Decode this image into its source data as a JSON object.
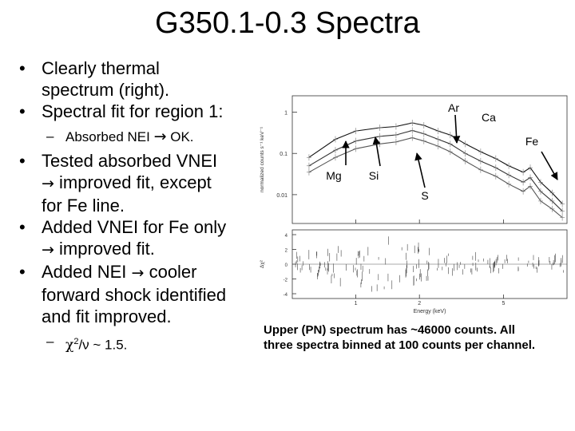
{
  "slide": {
    "title": "G350.1-0.3 Spectra",
    "bullet1_line1": "Clearly thermal",
    "bullet1_line2": "spectrum (right).",
    "bullet2": "Spectral fit for region 1:",
    "sub1_text": "Absorbed NEI",
    "sub1_result": "OK.",
    "bullet3_line1": "Tested absorbed VNEI",
    "bullet3_line2": "improved fit, except",
    "bullet3_line3": "for Fe line.",
    "bullet4_line1": "Added VNEI for Fe only",
    "bullet4_line2": "improved fit.",
    "bullet5_line1": "Added NEI",
    "bullet5_line1b": "cooler",
    "bullet5_line2": "forward shock identified",
    "bullet5_line3": "and fit improved.",
    "sub2_chi": "χ",
    "sub2_sup": "2",
    "sub2_rest": "/ν ~ 1.5.",
    "bullet_symbol": "•",
    "dash_symbol": "–",
    "arrow_symbol": "→",
    "caption_line1": "Upper (PN) spectrum has ~46000 counts. All",
    "caption_line2": "three spectra binned at 100 counts per channel."
  },
  "chart_data": {
    "type": "line",
    "xlabel": "Energy (keV)",
    "ylabel": "normalized counts s⁻¹ keV⁻¹",
    "residual_ylabel": "Δχ²",
    "xscale": "log",
    "yscale": "log",
    "x_ticks": [
      "1",
      "2",
      "5"
    ],
    "y_ticks": [
      "1",
      "0.1",
      "0.01"
    ],
    "residual_ticks": [
      "4",
      "2",
      "0",
      "-2",
      "-4"
    ],
    "annotations": [
      "Mg",
      "Si",
      "S",
      "Ar",
      "Ca",
      "Fe"
    ],
    "series": [
      {
        "x": [
          0.6,
          0.8,
          1.0,
          1.3,
          1.55,
          1.85,
          2.1,
          2.45,
          2.8,
          3.3,
          3.9,
          4.6,
          5.3,
          6.2,
          6.7,
          7.5,
          8.5,
          9.5
        ],
        "y": [
          0.08,
          0.22,
          0.35,
          0.42,
          0.45,
          0.55,
          0.48,
          0.35,
          0.28,
          0.17,
          0.11,
          0.075,
          0.05,
          0.035,
          0.045,
          0.02,
          0.011,
          0.006
        ]
      },
      {
        "x": [
          0.6,
          0.8,
          1.0,
          1.3,
          1.55,
          1.85,
          2.1,
          2.45,
          2.8,
          3.3,
          3.9,
          4.6,
          5.3,
          6.2,
          6.7,
          7.5,
          8.5,
          9.5
        ],
        "y": [
          0.05,
          0.12,
          0.2,
          0.26,
          0.28,
          0.36,
          0.3,
          0.22,
          0.17,
          0.1,
          0.065,
          0.045,
          0.03,
          0.02,
          0.026,
          0.012,
          0.007,
          0.004
        ]
      },
      {
        "x": [
          0.6,
          0.8,
          1.0,
          1.3,
          1.55,
          1.85,
          2.1,
          2.45,
          2.8,
          3.3,
          3.9,
          4.6,
          5.3,
          6.2,
          6.7,
          7.5,
          8.5,
          9.5
        ],
        "y": [
          0.035,
          0.08,
          0.13,
          0.17,
          0.19,
          0.24,
          0.2,
          0.15,
          0.11,
          0.065,
          0.04,
          0.028,
          0.018,
          0.012,
          0.016,
          0.007,
          0.0045,
          0.0028
        ]
      }
    ]
  }
}
